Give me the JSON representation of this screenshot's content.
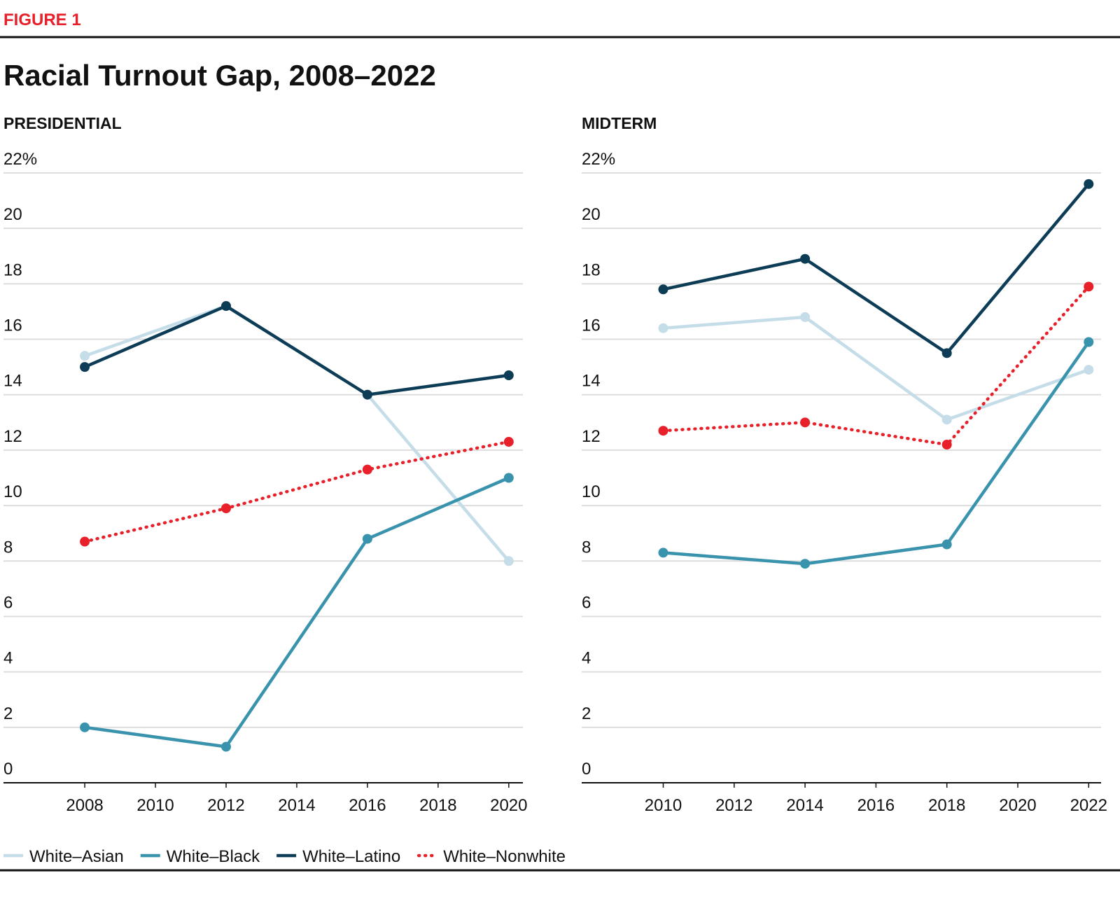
{
  "figure_label": "FIGURE 1",
  "title": "Racial Turnout Gap, 2008–2022",
  "chart_data": [
    {
      "type": "line",
      "subtitle": "PRESIDENTIAL",
      "x": [
        2008,
        2012,
        2016,
        2020
      ],
      "xlim": [
        2005.7,
        2020.4
      ],
      "xticks": [
        2008,
        2010,
        2012,
        2014,
        2016,
        2018,
        2020
      ],
      "ylim": [
        0,
        22
      ],
      "yticks": [
        0,
        2,
        4,
        6,
        8,
        10,
        12,
        14,
        16,
        18,
        20,
        {
          "value": 22,
          "label": "22%"
        }
      ],
      "grid": true,
      "series": [
        {
          "name": "White–Asian",
          "color": "#c5dde8",
          "values": [
            15.4,
            17.2,
            14.0,
            8.0
          ]
        },
        {
          "name": "White–Black",
          "color": "#3a93ad",
          "values": [
            2.0,
            1.3,
            8.8,
            11.0
          ]
        },
        {
          "name": "White–Latino",
          "color": "#0d3d56",
          "values": [
            15.0,
            17.2,
            14.0,
            14.7
          ]
        },
        {
          "name": "White–Nonwhite",
          "color": "#e8202a",
          "dotted": true,
          "values": [
            8.7,
            9.9,
            11.3,
            12.3
          ]
        }
      ]
    },
    {
      "type": "line",
      "subtitle": "MIDTERM",
      "x": [
        2010,
        2014,
        2018,
        2022
      ],
      "xlim": [
        2007.7,
        2022.35
      ],
      "xticks": [
        2010,
        2012,
        2014,
        2016,
        2018,
        2020,
        2022
      ],
      "ylim": [
        0,
        22
      ],
      "yticks": [
        0,
        2,
        4,
        6,
        8,
        10,
        12,
        14,
        16,
        18,
        20,
        {
          "value": 22,
          "label": "22%"
        }
      ],
      "grid": true,
      "series": [
        {
          "name": "White–Asian",
          "color": "#c5dde8",
          "values": [
            16.4,
            16.8,
            13.1,
            14.9
          ]
        },
        {
          "name": "White–Black",
          "color": "#3a93ad",
          "values": [
            8.3,
            7.9,
            8.6,
            15.9
          ]
        },
        {
          "name": "White–Latino",
          "color": "#0d3d56",
          "values": [
            17.8,
            18.9,
            15.5,
            21.6
          ]
        },
        {
          "name": "White–Nonwhite",
          "color": "#e8202a",
          "dotted": true,
          "values": [
            12.7,
            13.0,
            12.2,
            17.9
          ]
        }
      ]
    }
  ]
}
